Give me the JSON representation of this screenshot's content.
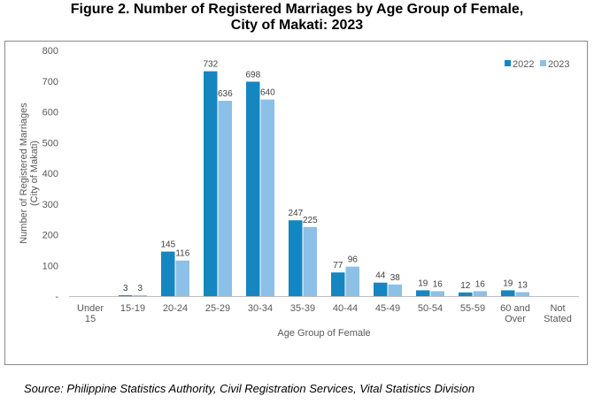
{
  "title_line1": "Figure 2.  Number of Registered Marriages by Age Group of Female,",
  "title_line2": "City of Makati: 2023",
  "source": "Source: Philippine Statistics Authority, Civil Registration Services, Vital Statistics Division",
  "chart_data": {
    "type": "bar",
    "title": "Figure 2.  Number of Registered Marriages by Age Group of Female, City of Makati: 2023",
    "xlabel": "Age Group of Female",
    "ylabel": [
      "Number of Registered Marriages",
      "(City of Makati)"
    ],
    "ylim": [
      0,
      800
    ],
    "yticks": [
      "-",
      "100",
      "200",
      "300",
      "400",
      "500",
      "600",
      "700",
      "800"
    ],
    "categories": [
      [
        "Under",
        "15"
      ],
      [
        "15-19"
      ],
      [
        "20-24"
      ],
      [
        "25-29"
      ],
      [
        "30-34"
      ],
      [
        "35-39"
      ],
      [
        "40-44"
      ],
      [
        "45-49"
      ],
      [
        "50-54"
      ],
      [
        "55-59"
      ],
      [
        "60 and",
        "Over"
      ],
      [
        "Not",
        "Stated"
      ]
    ],
    "series": [
      {
        "name": "2022",
        "color": "#1686c0",
        "values": [
          0,
          3,
          145,
          732,
          698,
          247,
          77,
          44,
          19,
          12,
          19,
          0
        ],
        "labels": [
          "",
          "3",
          "145",
          "732",
          "698",
          "247",
          "77",
          "44",
          "19",
          "12",
          "19",
          ""
        ]
      },
      {
        "name": "2023",
        "color": "#8cc0e6",
        "values": [
          0,
          3,
          116,
          636,
          640,
          225,
          96,
          38,
          16,
          16,
          13,
          0
        ],
        "labels": [
          "",
          "3",
          "116",
          "636",
          "640",
          "225",
          "96",
          "38",
          "16",
          "16",
          "13",
          ""
        ]
      }
    ],
    "legend_position": "top-right",
    "grid": false
  }
}
